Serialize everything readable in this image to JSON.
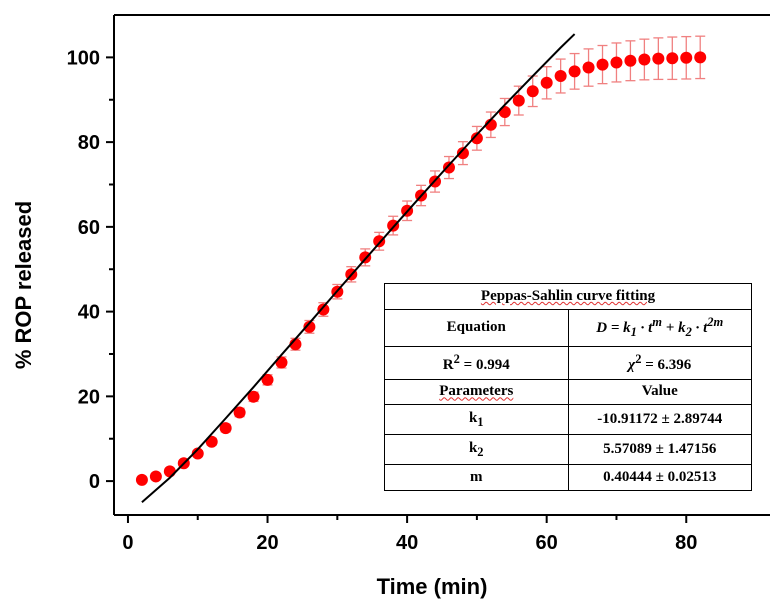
{
  "colors": {
    "points": "#ff0000",
    "errorbars": "#f08080",
    "fit_line": "#000000",
    "axis": "#000000"
  },
  "chart_data": {
    "type": "scatter",
    "xlabel": "Time (min)",
    "ylabel": "% ROP released",
    "xlim": [
      -2,
      92
    ],
    "ylim": [
      -8,
      110
    ],
    "xticks": [
      0,
      20,
      40,
      60,
      80
    ],
    "yticks": [
      0,
      20,
      40,
      60,
      80,
      100
    ],
    "series": [
      {
        "x": [
          2,
          4,
          6,
          8,
          10,
          12,
          14,
          16,
          18,
          20,
          22,
          24,
          26,
          28,
          30,
          32,
          34,
          36,
          38,
          40,
          42,
          44,
          46,
          48,
          50,
          52,
          54,
          56,
          58,
          60,
          62,
          64,
          66,
          68,
          70,
          72,
          74,
          76,
          78,
          80,
          82
        ],
        "values": [
          0.3,
          1.1,
          2.3,
          4.2,
          6.5,
          9.3,
          12.5,
          16.2,
          19.9,
          23.9,
          28,
          32.3,
          36.4,
          40.5,
          44.7,
          48.8,
          52.8,
          56.6,
          60.3,
          63.8,
          67.4,
          70.7,
          74,
          77.4,
          80.9,
          84.1,
          87.1,
          89.8,
          92,
          94,
          95.6,
          96.7,
          97.6,
          98.3,
          98.8,
          99.2,
          99.5,
          99.7,
          99.8,
          99.9,
          100
        ],
        "error": [
          0.3,
          0.4,
          0.5,
          0.6,
          0.7,
          0.8,
          0.9,
          1,
          1.1,
          1.2,
          1.3,
          1.4,
          1.5,
          1.6,
          1.7,
          1.8,
          2,
          2.1,
          2.2,
          2.3,
          2.4,
          2.5,
          2.6,
          2.7,
          2.8,
          3,
          3.2,
          3.4,
          3.6,
          3.8,
          4,
          4.2,
          4.4,
          4.5,
          4.6,
          4.7,
          4.8,
          4.9,
          5,
          5,
          5
        ]
      }
    ],
    "fit_line": {
      "x": [
        2,
        6,
        10,
        14,
        18,
        22,
        26,
        30,
        34,
        38,
        42,
        46,
        50,
        54,
        58,
        62,
        64
      ],
      "y": [
        -5,
        0.8,
        7.5,
        14.8,
        22.2,
        29.8,
        37.3,
        44.9,
        52.4,
        59.9,
        67.3,
        74.6,
        81.8,
        88.8,
        95.6,
        102.3,
        105.5
      ]
    },
    "table": {
      "title": "Peppas-Sahlin curve fitting",
      "rows": [
        {
          "c1": "Equation",
          "c2": "D = k1 · tm + k2 · t2m"
        },
        {
          "c1": "R2 = 0.994",
          "c2": "χ2 = 6.396"
        },
        {
          "c1": "Parameters",
          "c2": "Value"
        },
        {
          "c1": "k1",
          "c2": "-10.91172 ± 2.89744"
        },
        {
          "c1": "k2",
          "c2": "5.57089 ± 1.47156"
        },
        {
          "c1": "m",
          "c2": "0.40444 ± 0.02513"
        }
      ]
    }
  }
}
